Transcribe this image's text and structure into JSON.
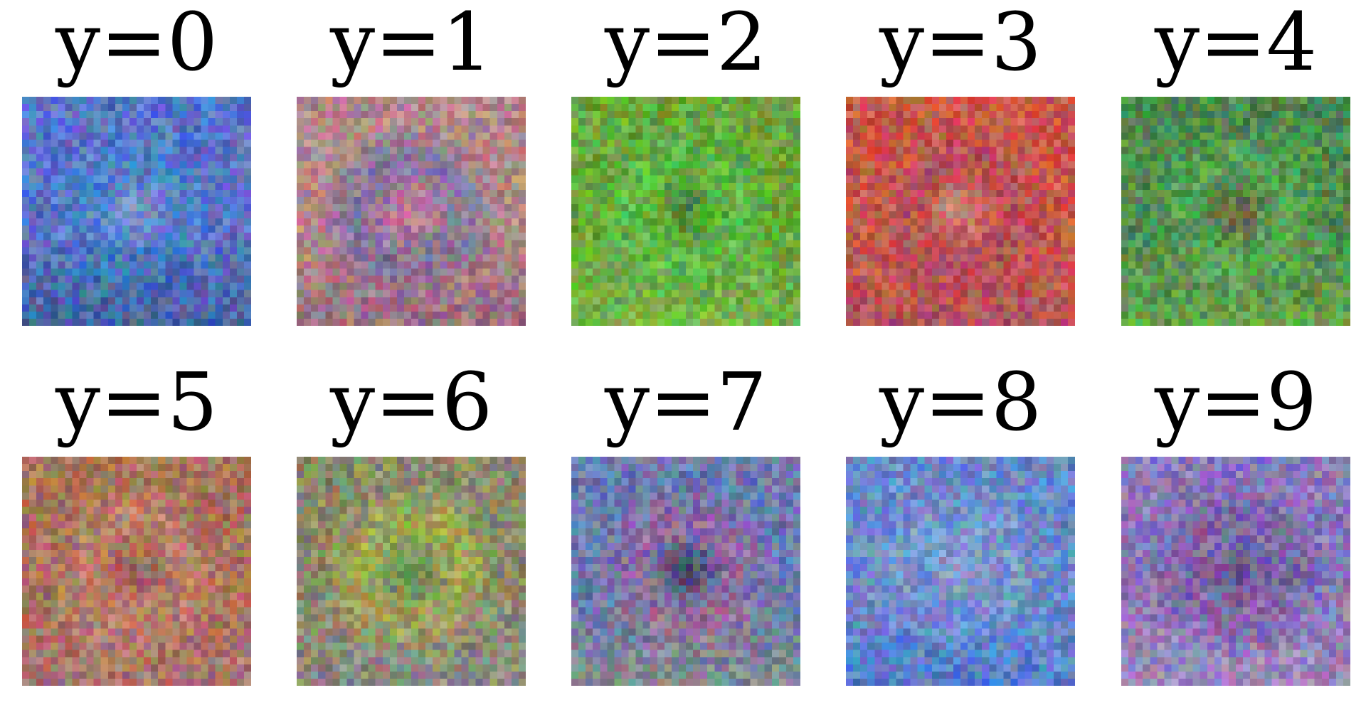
{
  "figure": {
    "panels": [
      {
        "title": "y=0",
        "palette": [
          "#5a74c8",
          "#3d8fc8",
          "#9fb7d6",
          "#1f4a4a"
        ]
      },
      {
        "title": "y=1",
        "palette": [
          "#b48a8a",
          "#4d5fb8",
          "#c45aa8",
          "#6a3a6a"
        ]
      },
      {
        "title": "y=2",
        "palette": [
          "#6aa83a",
          "#4ccb5a",
          "#2a6a3a",
          "#93c86a"
        ]
      },
      {
        "title": "y=3",
        "palette": [
          "#c8584a",
          "#a8506a",
          "#c8a0a8",
          "#8a4a8a"
        ]
      },
      {
        "title": "y=4",
        "palette": [
          "#4f8a4f",
          "#5fb85f",
          "#8a5a3a",
          "#9ad04a"
        ]
      },
      {
        "title": "y=5",
        "palette": [
          "#a8745a",
          "#d0907a",
          "#8a4a6a",
          "#b07aa0"
        ]
      },
      {
        "title": "y=6",
        "palette": [
          "#8a8a6a",
          "#b8c83a",
          "#5a8a4a",
          "#9a8ab0"
        ]
      },
      {
        "title": "y=7",
        "palette": [
          "#6a7ab0",
          "#c05a8a",
          "#2a1a2a",
          "#b8b04a"
        ]
      },
      {
        "title": "y=8",
        "palette": [
          "#6a8ac8",
          "#8aa8d0",
          "#a8a8c8",
          "#2a6ad0"
        ]
      },
      {
        "title": "y=9",
        "palette": [
          "#8a7ab8",
          "#6a4a8a",
          "#3a2a6a",
          "#c8a8c8"
        ]
      }
    ]
  }
}
